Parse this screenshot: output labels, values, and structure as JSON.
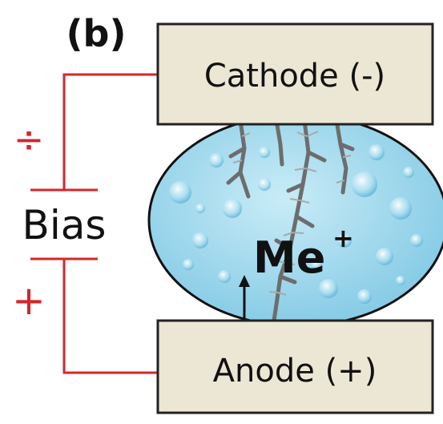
{
  "panel_label": "(b)",
  "cathode": {
    "label": "Cathode (-)"
  },
  "anode": {
    "label": "Anode (+)"
  },
  "bias": {
    "label": "Bias",
    "negative_sign": "÷",
    "positive_sign": "+"
  },
  "ion": {
    "symbol": "Me",
    "charge": "+"
  }
}
